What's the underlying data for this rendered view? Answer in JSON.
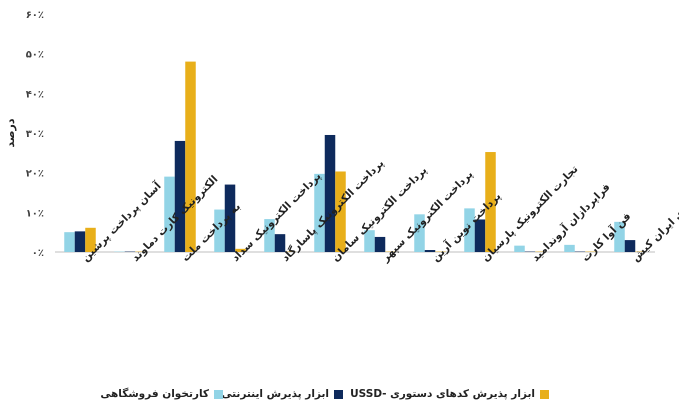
{
  "chart_data": {
    "type": "bar",
    "ylabel": "درصد",
    "ylim": [
      0,
      60
    ],
    "yticks": [
      {
        "value": 0,
        "label": "۰٪"
      },
      {
        "value": 10,
        "label": "۱۰٪"
      },
      {
        "value": 20,
        "label": "۲۰٪"
      },
      {
        "value": 30,
        "label": "۳۰٪"
      },
      {
        "value": 40,
        "label": "۴۰٪"
      },
      {
        "value": 50,
        "label": "۵۰٪"
      },
      {
        "value": 60,
        "label": "۶۰٪"
      }
    ],
    "categories": [
      [
        "آسان پرداخت پرشین"
      ],
      [
        "الکترونیک کارت دماوند"
      ],
      [
        "به پرداخت ملت"
      ],
      [
        "پرداخت الکترونیک سداد"
      ],
      [
        "پرداخت الکترونیک پاسارگاد"
      ],
      [
        "پرداخت الکترونیک سامان"
      ],
      [
        "پرداخت الکترونیک سپهر"
      ],
      [
        "پرداخت نوین آرین"
      ],
      [
        "تجارت الکترونیک پارسیان"
      ],
      [
        "فراپردازان آروندامید"
      ],
      [
        "فن آوا کارت"
      ],
      [
        "کارت اعتباری ایران کیش"
      ]
    ],
    "series": [
      {
        "name": "کارتخوان فروشگاهی",
        "color": "#92D4E6",
        "values": [
          5.0,
          0.1,
          19.0,
          10.7,
          8.3,
          19.7,
          5.5,
          9.5,
          11.0,
          1.6,
          1.8,
          7.6
        ]
      },
      {
        "name": "ابزار پذیرش اینترنتی",
        "color": "#0E2A5C",
        "values": [
          5.2,
          0.1,
          28.0,
          17.0,
          4.5,
          29.5,
          3.8,
          0.5,
          8.2,
          0.1,
          0.1,
          3.0
        ]
      },
      {
        "name": "ابزار پذیرش کدهای دستوری -USSD",
        "color": "#E8AF1A",
        "values": [
          6.1,
          0.1,
          48.0,
          0.8,
          0.1,
          20.3,
          0.1,
          0.1,
          25.2,
          0.1,
          0.1,
          0.1
        ]
      }
    ],
    "grid": false,
    "legend_position": "bottom"
  }
}
